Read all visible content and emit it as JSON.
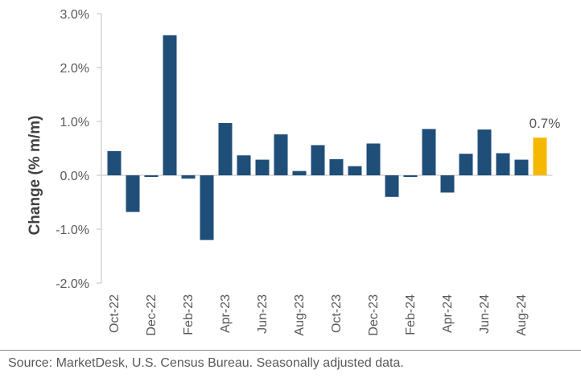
{
  "chart_data": {
    "type": "bar",
    "title": "",
    "xlabel": "",
    "ylabel": "Change (% m/m)",
    "ylim": [
      -2.0,
      3.0
    ],
    "y_ticks": [
      "3.0%",
      "2.0%",
      "1.0%",
      "0.0%",
      "-1.0%",
      "-2.0%"
    ],
    "y_tick_values": [
      3.0,
      2.0,
      1.0,
      0.0,
      -1.0,
      -2.0
    ],
    "categories": [
      "Oct-22",
      "Nov-22",
      "Dec-22",
      "Jan-23",
      "Feb-23",
      "Mar-23",
      "Apr-23",
      "May-23",
      "Jun-23",
      "Jul-23",
      "Aug-23",
      "Sep-23",
      "Oct-23",
      "Nov-23",
      "Dec-23",
      "Jan-24",
      "Feb-24",
      "Mar-24",
      "Apr-24",
      "May-24",
      "Jun-24",
      "Jul-24",
      "Aug-24",
      "Sep-24"
    ],
    "values": [
      0.45,
      -0.68,
      -0.03,
      2.6,
      -0.06,
      -1.2,
      0.97,
      0.37,
      0.29,
      0.76,
      0.08,
      0.56,
      0.3,
      0.17,
      0.59,
      -0.4,
      -0.03,
      0.86,
      -0.32,
      0.4,
      0.85,
      0.41,
      0.29,
      0.7
    ],
    "x_tick_labels": [
      "Oct-22",
      "Dec-22",
      "Feb-23",
      "Apr-23",
      "Jun-23",
      "Aug-23",
      "Oct-23",
      "Dec-23",
      "Feb-24",
      "Apr-24",
      "Jun-24",
      "Aug-24"
    ],
    "bar_color": "#1f4e79",
    "highlight_color": "#f5b800",
    "highlight_index": 23,
    "data_label": "0.7%",
    "source": "Source: MarketDesk, U.S. Census Bureau. Seasonally adjusted data."
  }
}
